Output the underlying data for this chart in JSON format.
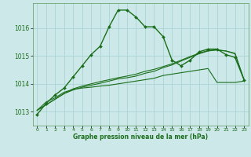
{
  "xlabel": "Graphe pression niveau de la mer (hPa)",
  "bg_color": "#cce8e8",
  "grid_color": "#aad4d4",
  "line_color": "#1a6e1a",
  "ylim": [
    1012.5,
    1016.9
  ],
  "yticks": [
    1013,
    1014,
    1015,
    1016
  ],
  "xticks": [
    0,
    1,
    2,
    3,
    4,
    5,
    6,
    7,
    8,
    9,
    10,
    11,
    12,
    13,
    14,
    15,
    16,
    17,
    18,
    19,
    20,
    21,
    22,
    23
  ],
  "series1_x": [
    0,
    1,
    2,
    3,
    4,
    5,
    6,
    7,
    8,
    9,
    10,
    11,
    12,
    13,
    14,
    15,
    16,
    17,
    18,
    19,
    20,
    21,
    22,
    23
  ],
  "series1_y": [
    1012.9,
    1013.3,
    1013.6,
    1013.85,
    1014.25,
    1014.65,
    1015.05,
    1015.35,
    1016.05,
    1016.65,
    1016.65,
    1016.4,
    1016.05,
    1016.05,
    1015.7,
    1014.85,
    1014.65,
    1014.85,
    1015.15,
    1015.25,
    1015.25,
    1015.05,
    1014.95,
    1014.15
  ],
  "series2_x": [
    0,
    1,
    2,
    3,
    4,
    5,
    6,
    7,
    8,
    9,
    10,
    11,
    12,
    13,
    14,
    15,
    16,
    17,
    18,
    19,
    20,
    21,
    22,
    23
  ],
  "series2_y": [
    1013.05,
    1013.35,
    1013.5,
    1013.7,
    1013.8,
    1013.85,
    1013.88,
    1013.92,
    1013.95,
    1014.0,
    1014.05,
    1014.1,
    1014.15,
    1014.2,
    1014.3,
    1014.35,
    1014.4,
    1014.45,
    1014.5,
    1014.55,
    1014.05,
    1014.05,
    1014.05,
    1014.1
  ],
  "series3_x": [
    0,
    1,
    2,
    3,
    4,
    5,
    6,
    7,
    8,
    9,
    10,
    11,
    12,
    13,
    14,
    15,
    16,
    17,
    18,
    19,
    20,
    21,
    22,
    23
  ],
  "series3_y": [
    1013.05,
    1013.25,
    1013.45,
    1013.65,
    1013.78,
    1013.88,
    1013.95,
    1014.02,
    1014.1,
    1014.18,
    1014.22,
    1014.28,
    1014.38,
    1014.45,
    1014.58,
    1014.68,
    1014.82,
    1014.95,
    1015.08,
    1015.18,
    1015.22,
    1015.18,
    1015.08,
    1014.15
  ],
  "series4_x": [
    0,
    1,
    2,
    3,
    4,
    5,
    6,
    7,
    8,
    9,
    10,
    11,
    12,
    13,
    14,
    15,
    16,
    17,
    18,
    19,
    20,
    21,
    22,
    23
  ],
  "series4_y": [
    1013.05,
    1013.25,
    1013.45,
    1013.65,
    1013.82,
    1013.92,
    1014.0,
    1014.08,
    1014.15,
    1014.22,
    1014.28,
    1014.35,
    1014.45,
    1014.52,
    1014.62,
    1014.72,
    1014.85,
    1014.98,
    1015.1,
    1015.2,
    1015.22,
    1015.18,
    1015.1,
    1014.15
  ]
}
